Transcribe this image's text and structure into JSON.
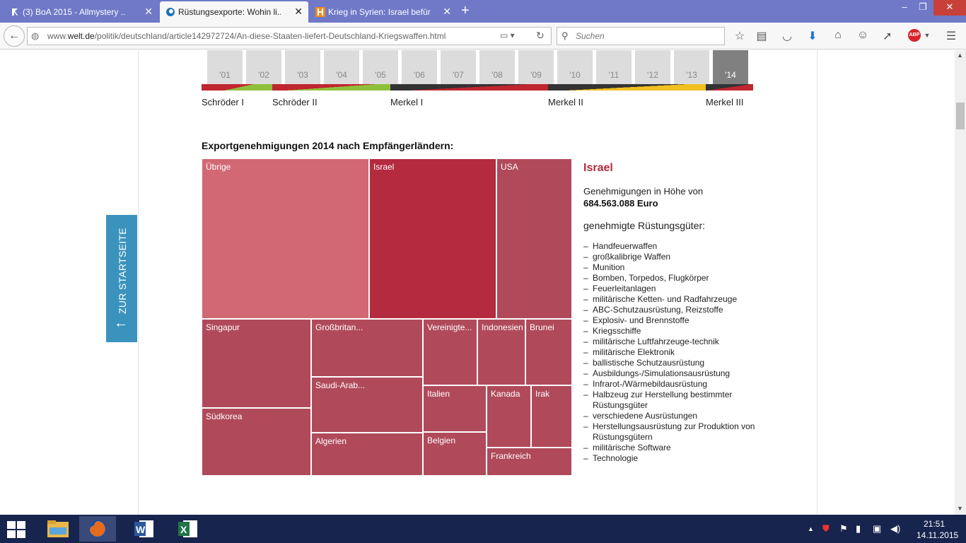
{
  "browser": {
    "tabs": [
      {
        "title": "(3) BoA 2015 - Allmystery ...",
        "favicon": "allmystery-icon"
      },
      {
        "title": "Rüstungsexporte: Wohin li...",
        "favicon": "welt-icon"
      },
      {
        "title": "Krieg in Syrien: Israel befür...",
        "favicon": "h-icon"
      }
    ],
    "new_tab": "+",
    "window": {
      "minimize": "–",
      "maximize": "❐",
      "close": "✕"
    },
    "url_prefix": "www.",
    "url_domain": "welt.de",
    "url_path": "/politik/deutschland/article142972724/An-diese-Staaten-liefert-Deutschland-Kriegswaffen.html",
    "search_placeholder": "Suchen",
    "abp": "ABP"
  },
  "page": {
    "side_tab": {
      "label": "ZUR STARTSEITE",
      "arrow": "←"
    },
    "years": [
      "'01",
      "'02",
      "'03",
      "'04",
      "'05",
      "'06",
      "'07",
      "'08",
      "'09",
      "'10",
      "'11",
      "'12",
      "'13",
      "'14"
    ],
    "selected_year": "'14",
    "governments": [
      "Schröder I",
      "Schröder II",
      "Merkel I",
      "Merkel II",
      "Merkel III"
    ],
    "chart_heading": "Exportgenehmigungen 2014 nach Empfängerländern:",
    "detail": {
      "country": "Israel",
      "amount_label": "Genehmigungen in Höhe von",
      "amount": "684.563.088 Euro",
      "goods_label": "genehmigte Rüstungsgüter:",
      "goods": [
        "Handfeuerwaffen",
        "großkalibrige Waffen",
        "Munition",
        "Bomben, Torpedos, Flugkörper",
        "Feuerleitanlagen",
        "militärische Ketten- und Radfahrzeuge",
        "ABC-Schutzausrüstung, Reizstoffe",
        "Explosiv- und Brennstoffe",
        "Kriegsschiffe",
        "militärische Luftfahrzeuge-technik",
        "militärische Elektronik",
        "ballistische Schutzausrüstung",
        "Ausbildungs-/Simulationsausrüstung",
        "Infrarot-/Wärmebildausrüstung",
        "Halbzeug zur Herstellung bestimmter Rüstungsgüter",
        "verschiedene Ausrüstungen",
        "Herstellungsausrüstung zur Produktion von Rüstungsgütern",
        "militärische Software",
        "Technologie"
      ]
    }
  },
  "chart_data": {
    "type": "treemap",
    "title": "Exportgenehmigungen 2014 nach Empfängerländern:",
    "selected": "Israel",
    "items": [
      {
        "label": "Übrige",
        "color": "#d16873"
      },
      {
        "label": "Israel",
        "color": "#b42a3f"
      },
      {
        "label": "USA",
        "color": "#b04a5a"
      },
      {
        "label": "Singapur",
        "color": "#b04a5a"
      },
      {
        "label": "Südkorea",
        "color": "#b04a5a"
      },
      {
        "label": "Großbritan...",
        "color": "#b04a5a"
      },
      {
        "label": "Saudi-Arab...",
        "color": "#b04a5a"
      },
      {
        "label": "Algerien",
        "color": "#b04a5a"
      },
      {
        "label": "Vereinigte...",
        "color": "#b04a5a"
      },
      {
        "label": "Indonesien",
        "color": "#b04a5a"
      },
      {
        "label": "Brunei",
        "color": "#b04a5a"
      },
      {
        "label": "Italien",
        "color": "#b04a5a"
      },
      {
        "label": "Kanada",
        "color": "#b04a5a"
      },
      {
        "label": "Irak",
        "color": "#b04a5a"
      },
      {
        "label": "Belgien",
        "color": "#b04a5a"
      },
      {
        "label": "Frankreich",
        "color": "#b04a5a"
      }
    ]
  },
  "taskbar": {
    "apps": [
      "file-explorer-icon",
      "firefox-icon",
      "word-icon",
      "excel-icon"
    ],
    "time": "21:51",
    "date": "14.11.2015"
  }
}
